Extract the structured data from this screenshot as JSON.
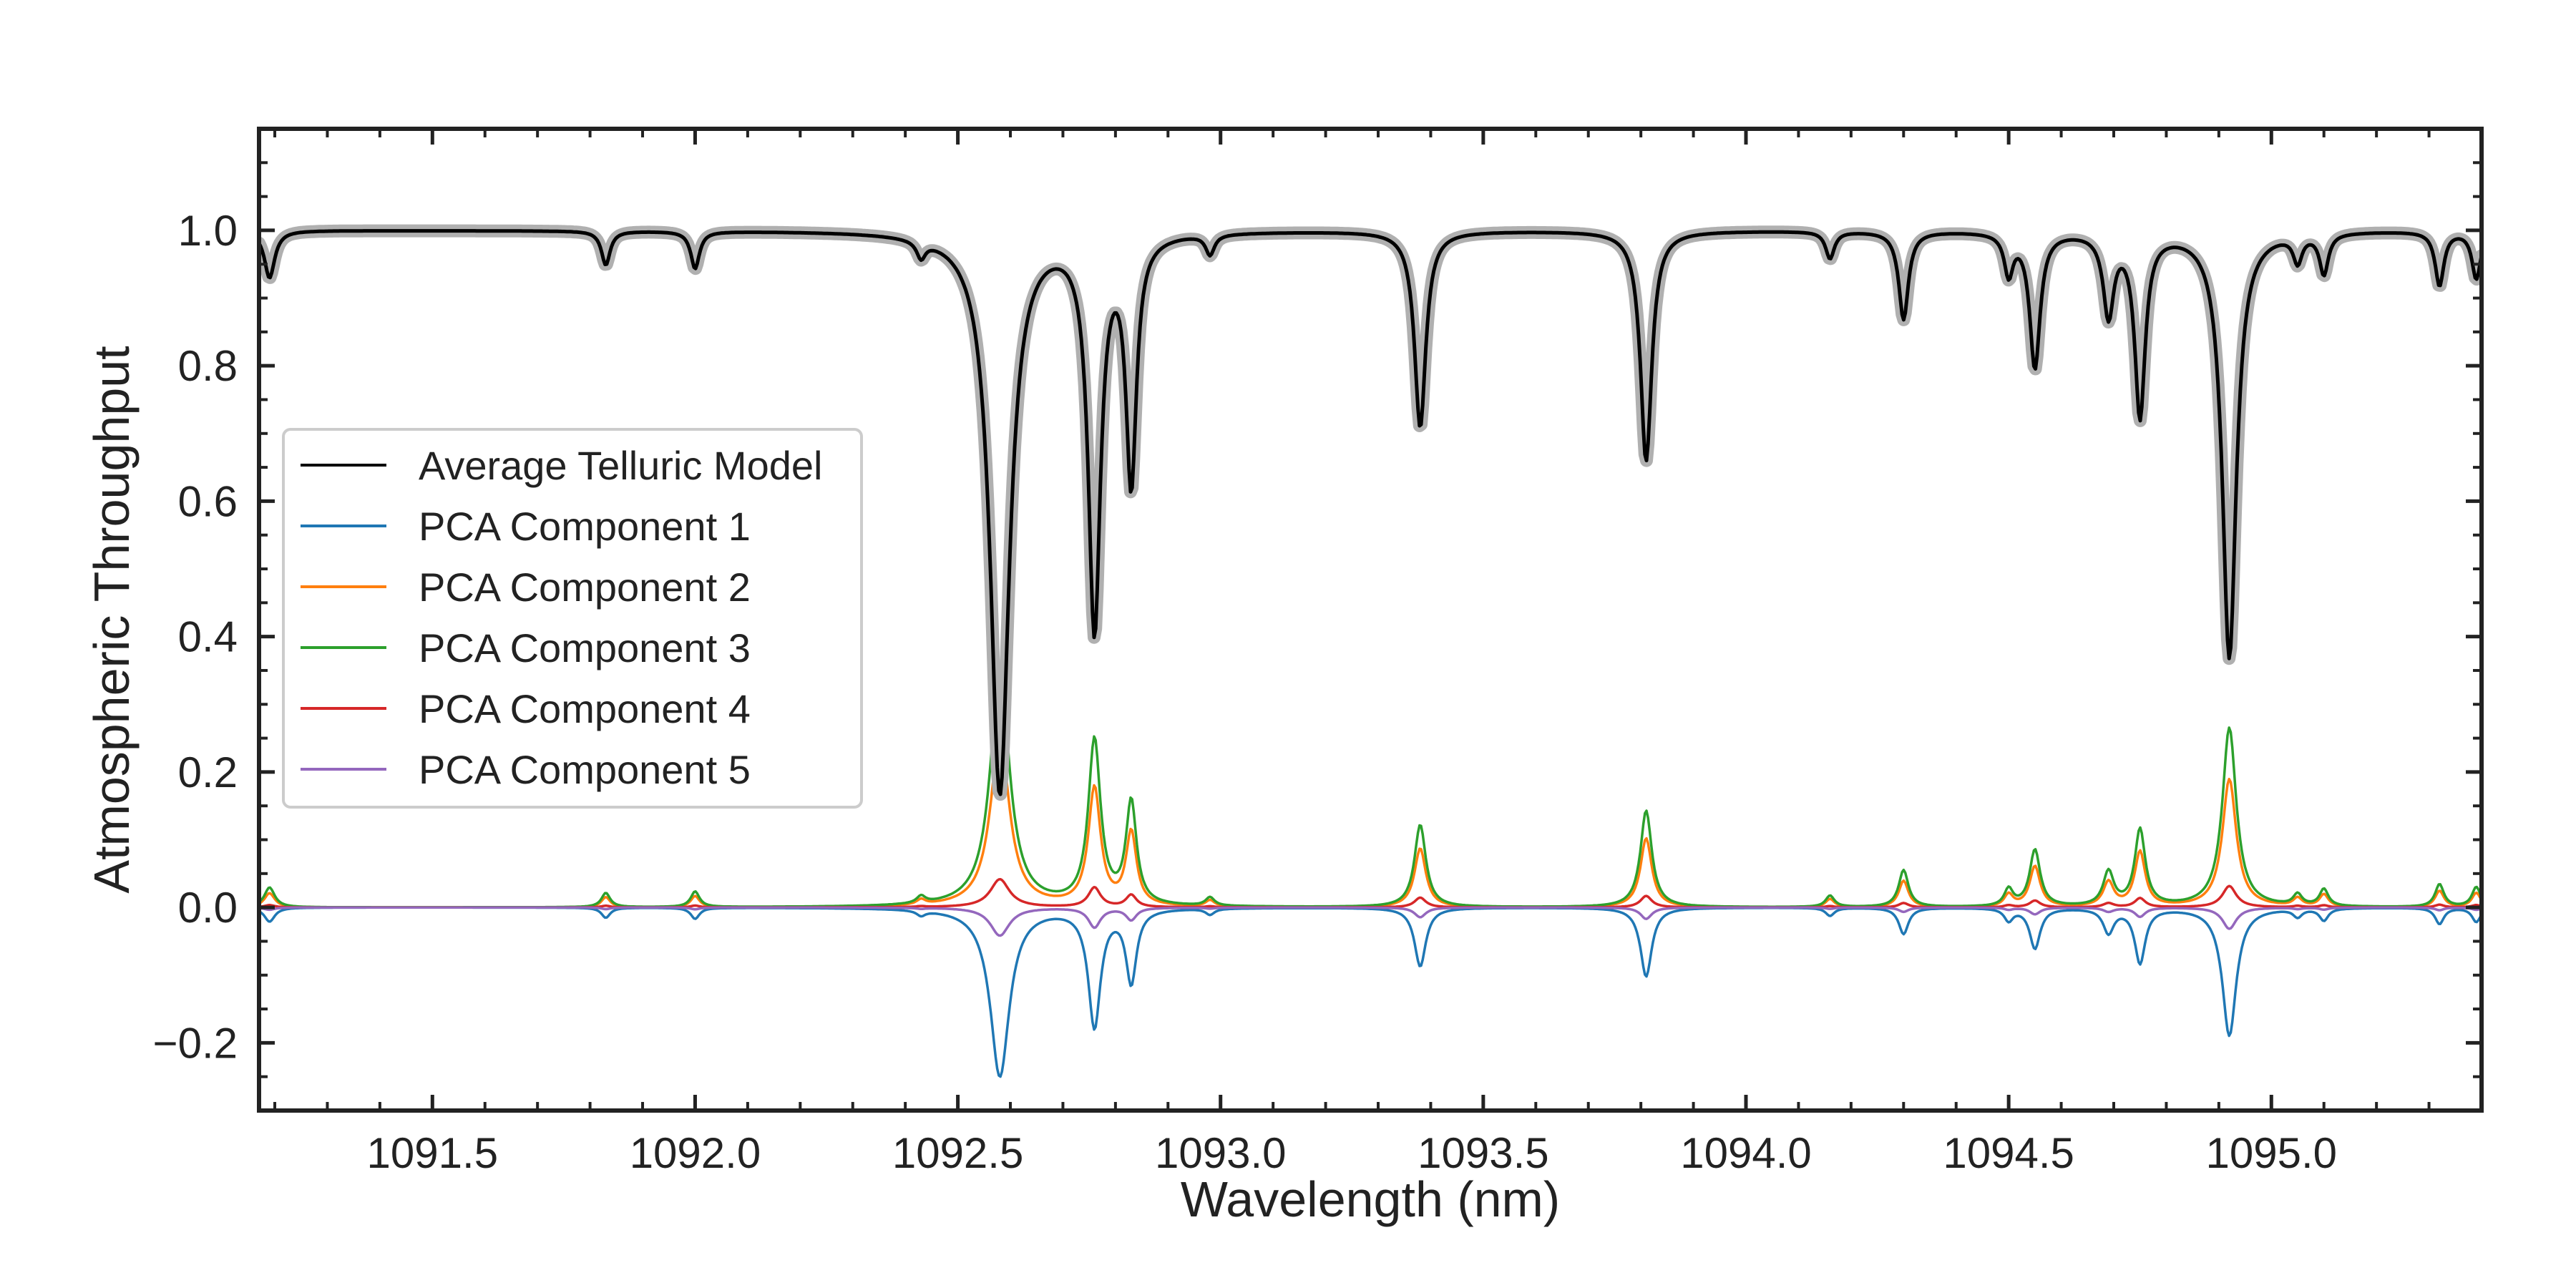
{
  "chart_data": {
    "type": "line",
    "title": "",
    "xlabel": "Wavelength (nm)",
    "ylabel": "Atmospheric Throughput",
    "xlim": [
      1091.17,
      1095.4
    ],
    "ylim": [
      -0.3,
      1.15
    ],
    "xticks": [
      1091.5,
      1092.0,
      1092.5,
      1093.0,
      1093.5,
      1094.0,
      1094.5,
      1095.0
    ],
    "xtick_labels": [
      "1091.5",
      "1092.0",
      "1092.5",
      "1093.0",
      "1093.5",
      "1094.0",
      "1094.5",
      "1095.0"
    ],
    "yticks": [
      -0.2,
      0.0,
      0.2,
      0.4,
      0.6,
      0.8,
      1.0
    ],
    "ytick_labels": [
      "−0.2",
      "0.0",
      "0.2",
      "0.4",
      "0.6",
      "0.8",
      "1.0"
    ],
    "legend_position": "center-left",
    "lines": [
      {
        "center": 1091.19,
        "depth": 0.07,
        "width": 0.012
      },
      {
        "center": 1091.83,
        "depth": 0.05,
        "width": 0.01
      },
      {
        "center": 1092.0,
        "depth": 0.055,
        "width": 0.01
      },
      {
        "center": 1092.43,
        "depth": 0.025,
        "width": 0.01
      },
      {
        "center": 1092.58,
        "depth": 0.83,
        "width": 0.022
      },
      {
        "center": 1092.76,
        "depth": 0.58,
        "width": 0.014
      },
      {
        "center": 1092.83,
        "depth": 0.36,
        "width": 0.012
      },
      {
        "center": 1092.98,
        "depth": 0.03,
        "width": 0.01
      },
      {
        "center": 1093.38,
        "depth": 0.29,
        "width": 0.013
      },
      {
        "center": 1093.81,
        "depth": 0.34,
        "width": 0.013
      },
      {
        "center": 1094.16,
        "depth": 0.04,
        "width": 0.01
      },
      {
        "center": 1094.3,
        "depth": 0.13,
        "width": 0.011
      },
      {
        "center": 1094.5,
        "depth": 0.06,
        "width": 0.01
      },
      {
        "center": 1094.55,
        "depth": 0.2,
        "width": 0.012
      },
      {
        "center": 1094.69,
        "depth": 0.12,
        "width": 0.012
      },
      {
        "center": 1094.75,
        "depth": 0.27,
        "width": 0.012
      },
      {
        "center": 1094.92,
        "depth": 0.63,
        "width": 0.016
      },
      {
        "center": 1095.05,
        "depth": 0.04,
        "width": 0.01
      },
      {
        "center": 1095.1,
        "depth": 0.06,
        "width": 0.01
      },
      {
        "center": 1095.32,
        "depth": 0.08,
        "width": 0.01
      },
      {
        "center": 1095.39,
        "depth": 0.07,
        "width": 0.01
      }
    ],
    "series": [
      {
        "name": "Average Telluric Model",
        "color": "#000000",
        "halo_color": "#b0b0b0",
        "baseline": 1.0,
        "scale": -1.0
      },
      {
        "name": "PCA Component 1",
        "color": "#1f77b4",
        "baseline": 0.0,
        "scale": -0.3
      },
      {
        "name": "PCA Component 2",
        "color": "#ff7f0e",
        "baseline": 0.0,
        "scale": 0.3
      },
      {
        "name": "PCA Component 3",
        "color": "#2ca02c",
        "baseline": 0.0,
        "scale": 0.42
      },
      {
        "name": "PCA Component 4",
        "color": "#d62728",
        "baseline": 0.0,
        "scale": 0.05
      },
      {
        "name": "PCA Component 5",
        "color": "#9467bd",
        "baseline": 0.0,
        "scale": -0.05
      }
    ]
  }
}
